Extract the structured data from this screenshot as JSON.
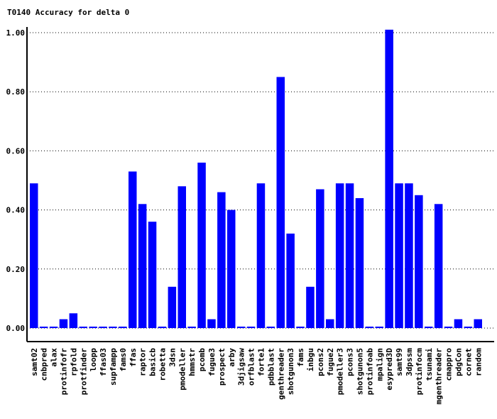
{
  "chart_data": {
    "type": "bar",
    "title": "T0140 Accuracy for delta 0",
    "xlabel": "",
    "ylabel": "",
    "ylim": [
      0,
      1.0
    ],
    "yticks": [
      "0.00",
      "0.20",
      "0.40",
      "0.60",
      "0.80",
      "1.00"
    ],
    "grid": true,
    "bar_color": "#0000ff",
    "categories": [
      "samt02",
      "cnbpred",
      "alax",
      "protinfofr",
      "rpfold",
      "protfinder",
      "loopp",
      "ffas03",
      "supfampp",
      "fams0",
      "ffas",
      "raptor",
      "basicb",
      "robetta",
      "3dsn",
      "pmodeller",
      "hmmstr",
      "pcomb",
      "fugue3",
      "prospect",
      "arby",
      "3djigsaw",
      "orfblast",
      "forte1",
      "pdbblast",
      "genthreader",
      "shotgunon3",
      "fams",
      "inbgu",
      "pcons2",
      "fugue2",
      "pmodeller3",
      "pcons3",
      "shotgunon5",
      "protinfoab",
      "mpalign",
      "esypred3D",
      "samt99",
      "3dpssm",
      "protinfocm",
      "tsunami",
      "mgenthreader",
      "cmappro",
      "pdgCon",
      "cornet",
      "random"
    ],
    "values": [
      0.49,
      0.005,
      0.005,
      0.03,
      0.05,
      0.005,
      0.005,
      0.005,
      0.005,
      0.005,
      0.53,
      0.42,
      0.36,
      0.005,
      0.14,
      0.48,
      0.005,
      0.56,
      0.03,
      0.46,
      0.4,
      0.005,
      0.005,
      0.49,
      0.005,
      0.85,
      0.32,
      0.005,
      0.14,
      0.47,
      0.03,
      0.49,
      0.49,
      0.44,
      0.005,
      0.005,
      1.01,
      0.49,
      0.49,
      0.45,
      0.005,
      0.42,
      0.005,
      0.03,
      0.005,
      0.03
    ]
  }
}
